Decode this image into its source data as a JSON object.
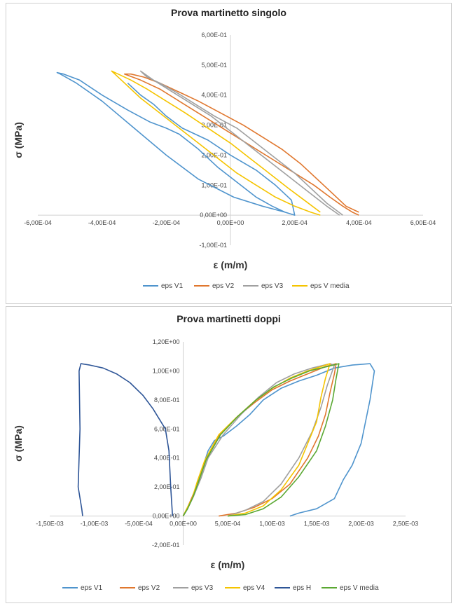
{
  "chart_data": [
    {
      "type": "line",
      "title": "Prova martinetto singolo",
      "xlabel": "ε (m/m)",
      "ylabel": "σ (MPa)",
      "xlim": [
        -0.0006,
        0.0006
      ],
      "ylim": [
        -0.1,
        0.6
      ],
      "xticks": [
        -0.0006,
        -0.0004,
        -0.0002,
        0,
        0.0002,
        0.0004,
        0.0006
      ],
      "yticks": [
        -0.1,
        0,
        0.1,
        0.2,
        0.3,
        0.4,
        0.5,
        0.6
      ],
      "xtick_labels": [
        "-6,00E-04",
        "-4,00E-04",
        "-2,00E-04",
        "0,00E+00",
        "2,00E-04",
        "4,00E-04",
        "6,00E-04"
      ],
      "ytick_labels": [
        "-1,00E-01",
        "0,00E+00",
        "1,00E-01",
        "2,00E-01",
        "3,00E-01",
        "4,00E-01",
        "5,00E-01",
        "6,00E-01"
      ],
      "grid": false,
      "legend_position": "bottom",
      "series": [
        {
          "name": "eps V1",
          "color": "#4f94cd",
          "x": [
            0.00017,
            0.0001,
            1e-05,
            -0.0001,
            -0.0002,
            -0.0003,
            -0.0004,
            -0.00048,
            -0.00053,
            -0.00054,
            -0.00052,
            -0.00047,
            -0.0004,
            -0.00032,
            -0.00025,
            -0.0002,
            -0.00016,
            -0.0001,
            -4e-05,
            2e-05,
            8e-05,
            0.00013,
            0.00017,
            0.0002,
            0.00019,
            0.00014,
            8e-05,
            0.0,
            -7e-05,
            -0.00015,
            -0.0002,
            -0.00024,
            -0.00028,
            -0.00032
          ],
          "y": [
            0.01,
            0.03,
            0.06,
            0.12,
            0.2,
            0.29,
            0.38,
            0.44,
            0.47,
            0.475,
            0.47,
            0.45,
            0.4,
            0.35,
            0.31,
            0.29,
            0.27,
            0.22,
            0.16,
            0.11,
            0.06,
            0.03,
            0.01,
            0.0,
            0.05,
            0.1,
            0.15,
            0.2,
            0.25,
            0.29,
            0.33,
            0.37,
            0.4,
            0.44
          ]
        },
        {
          "name": "eps V2",
          "color": "#e0772e",
          "x": [
            0.0004,
            0.00036,
            0.00032,
            0.00027,
            0.00022,
            0.00016,
            0.0001,
            4e-05,
            -3e-05,
            -0.0001,
            -0.00016,
            -0.00022,
            -0.00027,
            -0.00031,
            -0.00033,
            -0.00028,
            -0.00022,
            -0.00016,
            -0.0001,
            -4e-05,
            2e-05,
            8e-05,
            0.00014,
            0.0002,
            0.00026,
            0.00031,
            0.00035,
            0.00038,
            0.0004
          ],
          "y": [
            0.01,
            0.03,
            0.07,
            0.12,
            0.17,
            0.22,
            0.26,
            0.3,
            0.34,
            0.38,
            0.41,
            0.44,
            0.46,
            0.47,
            0.47,
            0.45,
            0.42,
            0.38,
            0.34,
            0.3,
            0.26,
            0.22,
            0.18,
            0.14,
            0.1,
            0.06,
            0.03,
            0.01,
            0.0
          ]
        },
        {
          "name": "eps V3",
          "color": "#a0a0a0",
          "x": [
            0.00035,
            0.0003,
            0.00025,
            0.0002,
            0.00014,
            8e-05,
            2e-05,
            -5e-05,
            -0.00011,
            -0.00017,
            -0.00022,
            -0.00026,
            -0.00028,
            -0.00024,
            -0.00018,
            -0.00012,
            -6e-05,
            0.0,
            6e-05,
            0.00012,
            0.00018,
            0.00024,
            0.0003,
            0.00034
          ],
          "y": [
            0.0,
            0.04,
            0.09,
            0.14,
            0.19,
            0.24,
            0.29,
            0.33,
            0.37,
            0.41,
            0.44,
            0.46,
            0.48,
            0.45,
            0.41,
            0.37,
            0.33,
            0.28,
            0.23,
            0.18,
            0.13,
            0.08,
            0.03,
            0.0
          ]
        },
        {
          "name": "eps V media",
          "color": "#f5c400",
          "x": [
            0.00028,
            0.00023,
            0.00018,
            0.00012,
            6e-05,
            0.0,
            -7e-05,
            -0.00014,
            -0.0002,
            -0.00026,
            -0.00031,
            -0.00035,
            -0.00037,
            -0.00033,
            -0.00028,
            -0.00022,
            -0.00016,
            -0.0001,
            -4e-05,
            2e-05,
            8e-05,
            0.00014,
            0.0002,
            0.00025,
            0.00028
          ],
          "y": [
            0.01,
            0.05,
            0.09,
            0.14,
            0.19,
            0.24,
            0.29,
            0.34,
            0.38,
            0.42,
            0.45,
            0.47,
            0.48,
            0.44,
            0.39,
            0.34,
            0.29,
            0.24,
            0.19,
            0.14,
            0.1,
            0.06,
            0.03,
            0.01,
            0.0
          ]
        }
      ]
    },
    {
      "type": "line",
      "title": "Prova martinetti doppi",
      "xlabel": "ε (m/m)",
      "ylabel": "σ (MPa)",
      "xlim": [
        -0.0015,
        0.0025
      ],
      "ylim": [
        -0.2,
        1.2
      ],
      "xticks": [
        -0.0015,
        -0.001,
        -0.0005,
        0,
        0.0005,
        0.001,
        0.0015,
        0.002,
        0.0025
      ],
      "yticks": [
        -0.2,
        0,
        0.2,
        0.4,
        0.6,
        0.8,
        1.0,
        1.2
      ],
      "xtick_labels": [
        "-1,50E-03",
        "-1,00E-03",
        "-5,00E-04",
        "0,00E+00",
        "5,00E-04",
        "1,00E-03",
        "1,50E-03",
        "2,00E-03",
        "2,50E-03"
      ],
      "ytick_labels": [
        "-2,00E-01",
        "0,00E+00",
        "2,00E-01",
        "4,00E-01",
        "6,00E-01",
        "8,00E-01",
        "1,00E+00",
        "1,20E+00"
      ],
      "grid": false,
      "legend_position": "bottom",
      "series": [
        {
          "name": "eps V1",
          "color": "#4f94cd",
          "x": [
            0.0,
            5e-05,
            0.0001,
            0.00015,
            0.0002,
            0.00028,
            0.00035,
            0.00045,
            0.0006,
            0.00075,
            0.0009,
            0.0011,
            0.0013,
            0.0015,
            0.0017,
            0.0019,
            0.0021,
            0.00215,
            0.0021,
            0.002,
            0.0019,
            0.0018,
            0.0017,
            0.0015,
            0.0013,
            0.0012
          ],
          "y": [
            0.0,
            0.05,
            0.12,
            0.2,
            0.3,
            0.45,
            0.52,
            0.55,
            0.62,
            0.7,
            0.8,
            0.88,
            0.93,
            0.97,
            1.02,
            1.04,
            1.05,
            1.0,
            0.8,
            0.5,
            0.35,
            0.25,
            0.12,
            0.05,
            0.02,
            0.0
          ]
        },
        {
          "name": "eps V2",
          "color": "#e0772e",
          "x": [
            0.0,
            5e-05,
            0.0001,
            0.00018,
            0.00025,
            0.0004,
            0.0006,
            0.0008,
            0.001,
            0.0012,
            0.0014,
            0.0016,
            0.00172,
            0.0017,
            0.00165,
            0.0016,
            0.00152,
            0.0014,
            0.0012,
            0.001,
            0.0008,
            0.0006,
            0.0004
          ],
          "y": [
            0.0,
            0.06,
            0.13,
            0.25,
            0.38,
            0.55,
            0.68,
            0.78,
            0.87,
            0.93,
            0.98,
            1.03,
            1.05,
            0.98,
            0.85,
            0.7,
            0.55,
            0.4,
            0.22,
            0.12,
            0.06,
            0.02,
            0.0
          ]
        },
        {
          "name": "eps V3",
          "color": "#a0a0a0",
          "x": [
            0.0,
            5e-05,
            0.00012,
            0.0002,
            0.00028,
            0.00045,
            0.00065,
            0.00085,
            0.00105,
            0.00125,
            0.00145,
            0.00165,
            0.0017,
            0.00162,
            0.00155,
            0.00145,
            0.0013,
            0.0011,
            0.0009,
            0.0007,
            0.0005
          ],
          "y": [
            0.0,
            0.05,
            0.14,
            0.26,
            0.4,
            0.56,
            0.7,
            0.82,
            0.92,
            0.98,
            1.02,
            1.05,
            1.04,
            0.9,
            0.75,
            0.58,
            0.4,
            0.22,
            0.1,
            0.04,
            0.0
          ]
        },
        {
          "name": "eps V4",
          "color": "#f5c400",
          "x": [
            0.0,
            4e-05,
            0.0001,
            0.00016,
            0.00024,
            0.0004,
            0.0006,
            0.0008,
            0.001,
            0.0012,
            0.0014,
            0.00165,
            0.0016,
            0.00155,
            0.0015,
            0.0014,
            0.0013,
            0.0011,
            0.0009,
            0.0007,
            0.0005
          ],
          "y": [
            0.0,
            0.05,
            0.12,
            0.24,
            0.38,
            0.56,
            0.68,
            0.79,
            0.88,
            0.95,
            1.0,
            1.05,
            0.95,
            0.82,
            0.65,
            0.5,
            0.35,
            0.18,
            0.07,
            0.02,
            0.0
          ]
        },
        {
          "name": "eps H",
          "color": "#2e5597",
          "x": [
            -0.00012,
            -0.00014,
            -0.00016,
            -0.0002,
            -0.00026,
            -0.00034,
            -0.00045,
            -0.0006,
            -0.00075,
            -0.0009,
            -0.00105,
            -0.00115,
            -0.00117,
            -0.00116,
            -0.00118,
            -0.00114,
            -0.00113
          ],
          "y": [
            0.0,
            0.2,
            0.45,
            0.6,
            0.66,
            0.74,
            0.83,
            0.92,
            0.98,
            1.02,
            1.04,
            1.05,
            1.0,
            0.6,
            0.2,
            0.05,
            0.0
          ]
        },
        {
          "name": "eps V media",
          "color": "#5aa832",
          "x": [
            0.0,
            5e-05,
            0.00011,
            0.00018,
            0.00026,
            0.00042,
            0.00062,
            0.00082,
            0.00102,
            0.00122,
            0.00142,
            0.00162,
            0.00175,
            0.00172,
            0.00168,
            0.0016,
            0.0015,
            0.0013,
            0.0011,
            0.0009,
            0.0007,
            0.0005
          ],
          "y": [
            0.0,
            0.05,
            0.13,
            0.25,
            0.39,
            0.56,
            0.69,
            0.8,
            0.89,
            0.95,
            1.0,
            1.03,
            1.05,
            0.95,
            0.8,
            0.62,
            0.45,
            0.27,
            0.13,
            0.05,
            0.01,
            0.0
          ]
        }
      ]
    }
  ]
}
